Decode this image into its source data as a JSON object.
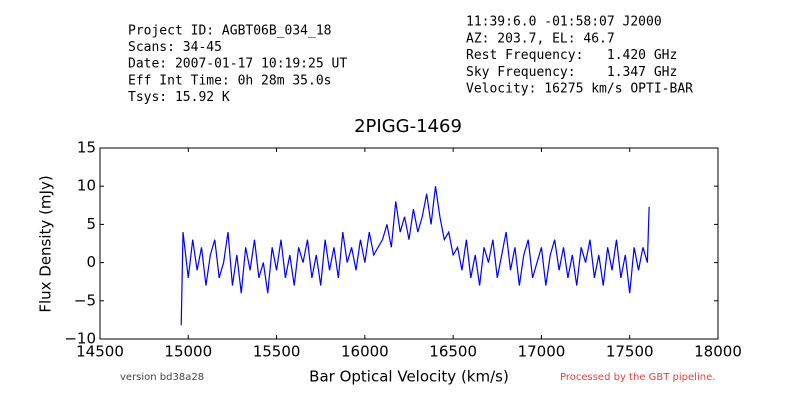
{
  "header": {
    "left": [
      "Project ID: AGBT06B_034_18",
      "Scans: 34-45",
      "Date: 2007-01-17 10:19:25 UT",
      "Eff Int Time: 0h 28m 35.0s",
      "Tsys: 15.92 K"
    ],
    "right": [
      "11:39:6.0 -01:58:07 J2000",
      "AZ: 203.7, EL: 46.7",
      "Rest Frequency:   1.420 GHz",
      "Sky Frequency:    1.347 GHz",
      "Velocity: 16275 km/s OPTI-BAR"
    ]
  },
  "footer": {
    "version": "version bd38a28",
    "pipeline": "Processed by the GBT pipeline."
  },
  "chart_data": {
    "type": "line",
    "title": "2PIGG-1469",
    "xlabel": "Bar Optical Velocity (km/s)",
    "ylabel": "Flux Density (mJy)",
    "xlim": [
      14500,
      18000
    ],
    "ylim": [
      -10,
      15
    ],
    "xticks": [
      14500,
      15000,
      15500,
      16000,
      16500,
      17000,
      17500,
      18000
    ],
    "yticks": [
      {
        "value": -10,
        "label": "−10"
      },
      {
        "value": -5,
        "label": "−5"
      },
      0,
      5,
      10,
      15
    ],
    "x": [
      14960,
      14970,
      15000,
      15025,
      15050,
      15075,
      15100,
      15125,
      15150,
      15175,
      15200,
      15225,
      15250,
      15275,
      15300,
      15325,
      15350,
      15375,
      15400,
      15425,
      15450,
      15475,
      15500,
      15525,
      15550,
      15575,
      15600,
      15625,
      15650,
      15675,
      15700,
      15725,
      15750,
      15775,
      15800,
      15825,
      15850,
      15875,
      15900,
      15925,
      15950,
      15975,
      16000,
      16025,
      16050,
      16075,
      16100,
      16125,
      16150,
      16175,
      16200,
      16225,
      16250,
      16275,
      16300,
      16325,
      16350,
      16375,
      16400,
      16425,
      16450,
      16475,
      16500,
      16525,
      16550,
      16575,
      16600,
      16625,
      16650,
      16675,
      16700,
      16725,
      16750,
      16775,
      16800,
      16825,
      16850,
      16875,
      16900,
      16925,
      16950,
      16975,
      17000,
      17025,
      17050,
      17075,
      17100,
      17125,
      17150,
      17175,
      17200,
      17225,
      17250,
      17275,
      17300,
      17325,
      17350,
      17375,
      17400,
      17425,
      17450,
      17475,
      17500,
      17525,
      17550,
      17575,
      17600,
      17610
    ],
    "series": [
      {
        "name": "spectrum",
        "color": "#0000ff",
        "values": [
          -8.2,
          4,
          -2,
          3,
          -1,
          2,
          -3,
          1,
          3,
          -2,
          0,
          4,
          -3,
          1,
          -4,
          2,
          -1,
          3,
          -2,
          0,
          -4,
          2,
          -1,
          3,
          -2,
          1,
          -3,
          2,
          0,
          3,
          -2,
          1,
          -3,
          3,
          -1,
          2,
          -2,
          4,
          0,
          2,
          -1,
          3,
          0,
          4,
          1,
          2,
          3,
          5,
          2,
          8,
          4,
          6,
          3,
          7,
          4,
          6,
          9,
          5,
          10,
          6,
          3,
          4,
          1,
          2,
          -1,
          3,
          -2,
          1,
          -3,
          2,
          0,
          3,
          -2,
          1,
          4,
          -1,
          2,
          -3,
          1,
          3,
          -2,
          0,
          2,
          -3,
          1,
          3,
          -1,
          2,
          -2,
          1,
          -3,
          2,
          0,
          3,
          -2,
          1,
          -3,
          2,
          -1,
          3,
          -2,
          1,
          -4,
          2,
          -1,
          2,
          0,
          7.3
        ]
      }
    ]
  }
}
